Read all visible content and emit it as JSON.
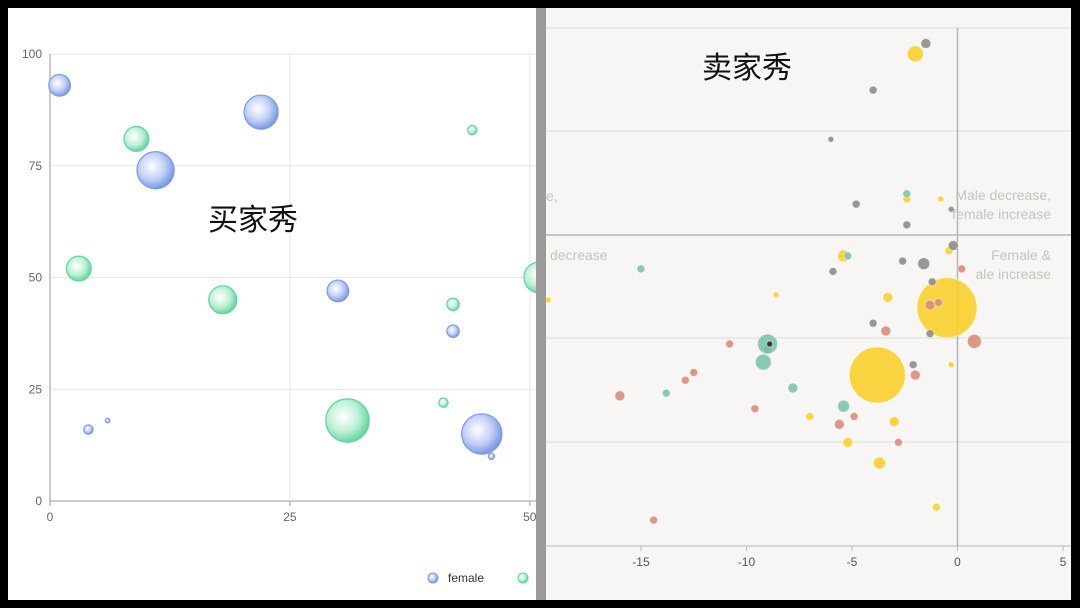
{
  "left_caption": "买家秀",
  "right_caption": "卖家秀",
  "colors": {
    "female": "#7a9ae9",
    "male": "#5fd69e",
    "yellow": "#f8d030",
    "gray": "#8a8a88",
    "teal": "#7cc4a8",
    "salmon": "#d88a78"
  },
  "legend": {
    "female_label": "female"
  },
  "quadrant_labels": {
    "top_left": "e,",
    "top_right_1": "Male decrease,",
    "top_right_2": "female increase",
    "mid_left": "decrease",
    "mid_right_1": "Female &",
    "mid_right_2": "ale increase"
  },
  "chart_data": [
    {
      "type": "scatter",
      "title": "",
      "xlim": [
        0,
        52
      ],
      "ylim": [
        0,
        100
      ],
      "x_ticks": [
        "0",
        "25",
        "50"
      ],
      "y_ticks": [
        "0",
        "25",
        "50",
        "75",
        "100"
      ],
      "legend_placement": "bottom-right",
      "series": [
        {
          "name": "female",
          "points": [
            {
              "x": 1,
              "y": 93,
              "r": 7
            },
            {
              "x": 11,
              "y": 74,
              "r": 12
            },
            {
              "x": 22,
              "y": 87,
              "r": 11
            },
            {
              "x": 30,
              "y": 47,
              "r": 7
            },
            {
              "x": 42,
              "y": 38,
              "r": 4
            },
            {
              "x": 45,
              "y": 15,
              "r": 13
            },
            {
              "x": 46,
              "y": 10,
              "r": 2
            },
            {
              "x": 4,
              "y": 16,
              "r": 3
            },
            {
              "x": 6,
              "y": 18,
              "r": 1.5
            }
          ]
        },
        {
          "name": "",
          "points": [
            {
              "x": 9,
              "y": 81,
              "r": 8
            },
            {
              "x": 3,
              "y": 52,
              "r": 8
            },
            {
              "x": 18,
              "y": 45,
              "r": 9
            },
            {
              "x": 31,
              "y": 18,
              "r": 14
            },
            {
              "x": 42,
              "y": 44,
              "r": 4
            },
            {
              "x": 44,
              "y": 83,
              "r": 3
            },
            {
              "x": 41,
              "y": 22,
              "r": 3
            },
            {
              "x": 51,
              "y": 50,
              "r": 10
            }
          ]
        }
      ]
    },
    {
      "type": "scatter",
      "title": "",
      "xlim": [
        -19.5,
        5
      ],
      "x_ticks": [
        "-15",
        "-10",
        "-5",
        "0",
        "5"
      ],
      "grid": true,
      "series": [
        {
          "name": "",
          "color_key": "yellow",
          "points": [
            {
              "x": -2,
              "y": 0.95,
              "r": 8
            },
            {
              "x": -0.5,
              "y": 0.46,
              "r": 30
            },
            {
              "x": -3.8,
              "y": 0.33,
              "r": 28
            },
            {
              "x": -5.4,
              "y": 0.56,
              "r": 6
            },
            {
              "x": -3.3,
              "y": 0.48,
              "r": 5
            },
            {
              "x": -3.7,
              "y": 0.16,
              "r": 6
            },
            {
              "x": -5.2,
              "y": 0.2,
              "r": 5
            },
            {
              "x": -0.4,
              "y": 0.57,
              "r": 4
            },
            {
              "x": -1.0,
              "y": 0.075,
              "r": 4
            },
            {
              "x": -7.0,
              "y": 0.25,
              "r": 4
            },
            {
              "x": -8.6,
              "y": 0.485,
              "r": 3
            },
            {
              "x": -3.0,
              "y": 0.24,
              "r": 5
            },
            {
              "x": -2.4,
              "y": 0.67,
              "r": 4
            },
            {
              "x": -0.8,
              "y": 0.67,
              "r": 3
            },
            {
              "x": -0.3,
              "y": 0.35,
              "r": 3
            },
            {
              "x": -19.4,
              "y": 0.475,
              "r": 3
            }
          ]
        },
        {
          "name": "",
          "color_key": "gray",
          "points": [
            {
              "x": -1.5,
              "y": 0.97,
              "r": 5
            },
            {
              "x": -4.0,
              "y": 0.88,
              "r": 4
            },
            {
              "x": -6.0,
              "y": 0.785,
              "r": 3
            },
            {
              "x": -4.8,
              "y": 0.66,
              "r": 4
            },
            {
              "x": -2.4,
              "y": 0.62,
              "r": 4
            },
            {
              "x": -0.2,
              "y": 0.58,
              "r": 5
            },
            {
              "x": -1.6,
              "y": 0.545,
              "r": 6
            },
            {
              "x": -2.6,
              "y": 0.55,
              "r": 4
            },
            {
              "x": -5.9,
              "y": 0.53,
              "r": 4
            },
            {
              "x": -1.2,
              "y": 0.51,
              "r": 4
            },
            {
              "x": -9.0,
              "y": 0.38,
              "r": 4
            },
            {
              "x": -4.0,
              "y": 0.43,
              "r": 4
            },
            {
              "x": -1.3,
              "y": 0.41,
              "r": 4
            },
            {
              "x": -2.1,
              "y": 0.35,
              "r": 4
            },
            {
              "x": -0.3,
              "y": 0.65,
              "r": 3
            }
          ]
        },
        {
          "name": "",
          "color_key": "teal",
          "points": [
            {
              "x": -9.0,
              "y": 0.39,
              "r": 10
            },
            {
              "x": -9.2,
              "y": 0.355,
              "r": 8
            },
            {
              "x": -15.0,
              "y": 0.535,
              "r": 4
            },
            {
              "x": -13.8,
              "y": 0.295,
              "r": 4
            },
            {
              "x": -7.8,
              "y": 0.305,
              "r": 5
            },
            {
              "x": -5.4,
              "y": 0.27,
              "r": 6
            },
            {
              "x": -2.4,
              "y": 0.68,
              "r": 4
            },
            {
              "x": -5.2,
              "y": 0.56,
              "r": 4
            }
          ]
        },
        {
          "name": "",
          "color_key": "salmon",
          "points": [
            {
              "x": -16.0,
              "y": 0.29,
              "r": 5
            },
            {
              "x": -14.4,
              "y": 0.05,
              "r": 4
            },
            {
              "x": -12.5,
              "y": 0.335,
              "r": 4
            },
            {
              "x": -12.9,
              "y": 0.32,
              "r": 4
            },
            {
              "x": -10.8,
              "y": 0.39,
              "r": 4
            },
            {
              "x": -9.6,
              "y": 0.265,
              "r": 4
            },
            {
              "x": -5.6,
              "y": 0.235,
              "r": 5
            },
            {
              "x": -4.9,
              "y": 0.25,
              "r": 4
            },
            {
              "x": -3.4,
              "y": 0.415,
              "r": 5
            },
            {
              "x": -2.0,
              "y": 0.33,
              "r": 5
            },
            {
              "x": -2.8,
              "y": 0.2,
              "r": 4
            },
            {
              "x": -1.3,
              "y": 0.465,
              "r": 5
            },
            {
              "x": 0.8,
              "y": 0.395,
              "r": 7
            },
            {
              "x": 0.2,
              "y": 0.535,
              "r": 4
            },
            {
              "x": -0.9,
              "y": 0.47,
              "r": 4
            }
          ]
        },
        {
          "name": "",
          "color_key": "dark",
          "points": [
            {
              "x": -8.9,
              "y": 0.39,
              "r": 3
            }
          ]
        }
      ]
    }
  ]
}
